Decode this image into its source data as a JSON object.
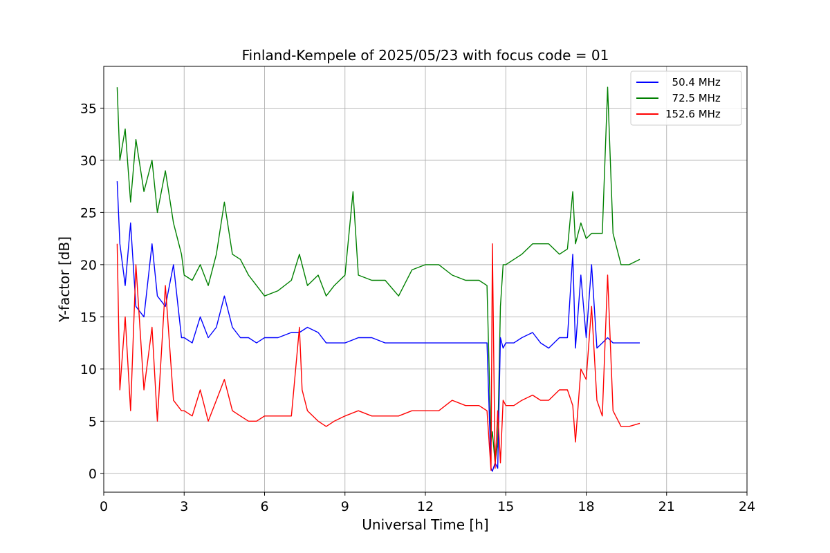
{
  "chart_data": {
    "type": "line",
    "title": "Finland-Kempele of 2025/05/23 with focus code = 01",
    "xlabel": "Universal Time [h]",
    "ylabel": "Y-factor [dB]",
    "xlim": [
      0,
      24
    ],
    "ylim": [
      -1.8,
      39
    ],
    "xticks": [
      0,
      3,
      6,
      9,
      12,
      15,
      18,
      21,
      24
    ],
    "yticks": [
      0,
      5,
      10,
      15,
      20,
      25,
      30,
      35
    ],
    "grid": true,
    "legend_position": "top-right",
    "series": [
      {
        "name": "  50.4 MHz",
        "color": "#0000ff",
        "x": [
          0.5,
          0.6,
          0.8,
          1.0,
          1.2,
          1.5,
          1.8,
          2.0,
          2.3,
          2.6,
          2.9,
          3.0,
          3.3,
          3.6,
          3.9,
          4.2,
          4.5,
          4.8,
          5.1,
          5.4,
          5.7,
          6.0,
          6.5,
          7.0,
          7.3,
          7.6,
          8.0,
          8.3,
          8.6,
          9.0,
          9.5,
          10.0,
          10.5,
          11.0,
          11.5,
          12.0,
          12.5,
          13.0,
          13.5,
          14.0,
          14.3,
          14.45,
          14.5,
          14.6,
          14.7,
          14.8,
          14.9,
          15.0,
          15.3,
          15.6,
          16.0,
          16.3,
          16.6,
          17.0,
          17.3,
          17.5,
          17.6,
          17.8,
          18.0,
          18.2,
          18.4,
          18.6,
          18.8,
          19.0,
          19.3,
          19.6,
          20.0
        ],
        "y": [
          28,
          22,
          18,
          24,
          16,
          15,
          22,
          17,
          16,
          20,
          13,
          13,
          12.5,
          15,
          13,
          14,
          17,
          14,
          13,
          13,
          12.5,
          13,
          13,
          13.5,
          13.5,
          14,
          13.5,
          12.5,
          12.5,
          12.5,
          13,
          13,
          12.5,
          12.5,
          12.5,
          12.5,
          12.5,
          12.5,
          12.5,
          12.5,
          12.5,
          0.5,
          0.2,
          1,
          0.5,
          13,
          12,
          12.5,
          12.5,
          13,
          13.5,
          12.5,
          12,
          13,
          13,
          21,
          12,
          19,
          13,
          20,
          12,
          12.5,
          13,
          12.5,
          12.5,
          12.5,
          12.5
        ]
      },
      {
        "name": "  72.5 MHz",
        "color": "#008000",
        "x": [
          0.5,
          0.6,
          0.8,
          1.0,
          1.2,
          1.5,
          1.8,
          2.0,
          2.3,
          2.6,
          2.9,
          3.0,
          3.3,
          3.6,
          3.9,
          4.2,
          4.5,
          4.8,
          5.1,
          5.4,
          5.7,
          6.0,
          6.5,
          7.0,
          7.3,
          7.6,
          8.0,
          8.3,
          8.6,
          9.0,
          9.3,
          9.5,
          10.0,
          10.5,
          11.0,
          11.5,
          12.0,
          12.5,
          13.0,
          13.5,
          14.0,
          14.3,
          14.45,
          14.5,
          14.6,
          14.7,
          14.8,
          14.9,
          15.0,
          15.3,
          15.6,
          16.0,
          16.3,
          16.6,
          17.0,
          17.3,
          17.5,
          17.6,
          17.8,
          18.0,
          18.2,
          18.4,
          18.6,
          18.8,
          19.0,
          19.3,
          19.6,
          20.0
        ],
        "y": [
          37,
          30,
          33,
          26,
          32,
          27,
          30,
          25,
          29,
          24,
          21,
          19,
          18.5,
          20,
          18,
          21,
          26,
          21,
          20.5,
          19,
          18,
          17,
          17.5,
          18.5,
          21,
          18,
          19,
          17,
          18,
          19,
          27,
          19,
          18.5,
          18.5,
          17,
          19.5,
          20,
          20,
          19,
          18.5,
          18.5,
          18,
          3,
          4,
          1,
          3,
          16,
          20,
          20,
          20.5,
          21,
          22,
          22,
          22,
          21,
          21.5,
          27,
          22,
          24,
          22.5,
          23,
          23,
          23,
          37,
          23,
          20,
          20,
          20.5
        ]
      },
      {
        "name": "152.6 MHz",
        "color": "#ff0000",
        "x": [
          0.5,
          0.6,
          0.8,
          1.0,
          1.2,
          1.5,
          1.8,
          2.0,
          2.3,
          2.6,
          2.9,
          3.0,
          3.3,
          3.6,
          3.9,
          4.2,
          4.5,
          4.8,
          5.1,
          5.4,
          5.7,
          6.0,
          6.5,
          7.0,
          7.3,
          7.4,
          7.6,
          8.0,
          8.3,
          8.6,
          9.0,
          9.5,
          10.0,
          10.5,
          11.0,
          11.5,
          12.0,
          12.5,
          13.0,
          13.5,
          14.0,
          14.3,
          14.45,
          14.5,
          14.6,
          14.7,
          14.8,
          14.9,
          15.0,
          15.3,
          15.6,
          16.0,
          16.3,
          16.6,
          17.0,
          17.3,
          17.5,
          17.6,
          17.8,
          18.0,
          18.2,
          18.4,
          18.6,
          18.8,
          19.0,
          19.3,
          19.6,
          20.0
        ],
        "y": [
          22,
          8,
          15,
          6,
          20,
          8,
          14,
          5,
          18,
          7,
          6,
          6,
          5.5,
          8,
          5,
          7,
          9,
          6,
          5.5,
          5,
          5,
          5.5,
          5.5,
          5.5,
          14,
          8,
          6,
          5,
          4.5,
          5,
          5.5,
          6,
          5.5,
          5.5,
          5.5,
          6,
          6,
          6,
          7,
          6.5,
          6.5,
          6,
          0.3,
          22,
          0.5,
          6,
          1,
          7,
          6.5,
          6.5,
          7,
          7.5,
          7,
          7,
          8,
          8,
          6.5,
          3,
          10,
          9,
          16,
          7,
          5.5,
          19,
          6,
          4.5,
          4.5,
          4.8
        ]
      }
    ]
  }
}
